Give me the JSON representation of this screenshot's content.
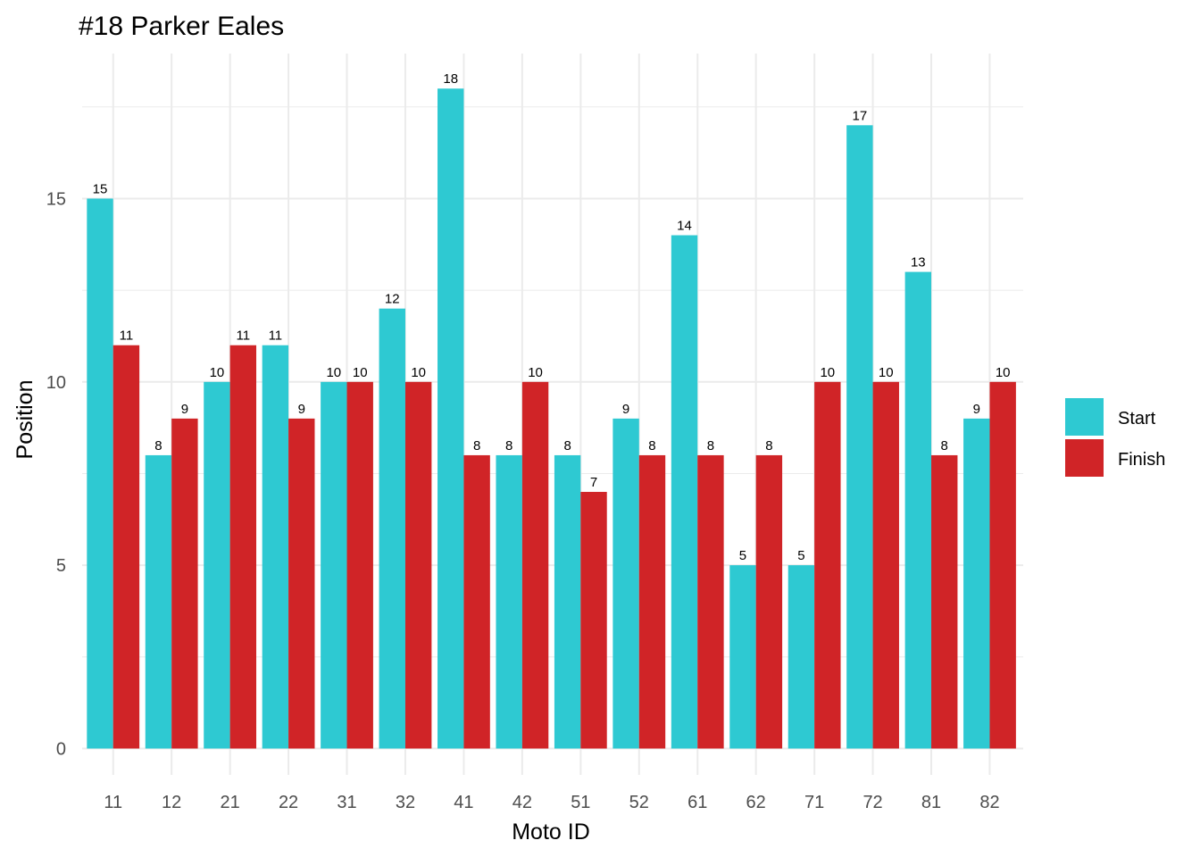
{
  "chart_data": {
    "type": "bar",
    "title": "#18 Parker Eales",
    "xlabel": "Moto ID",
    "ylabel": "Position",
    "categories": [
      "11",
      "12",
      "21",
      "22",
      "31",
      "32",
      "41",
      "42",
      "51",
      "52",
      "61",
      "62",
      "71",
      "72",
      "81",
      "82"
    ],
    "series": [
      {
        "name": "Start",
        "color": "#2ec9d2",
        "values": [
          15,
          8,
          10,
          11,
          10,
          12,
          18,
          8,
          8,
          9,
          14,
          5,
          5,
          17,
          13,
          9
        ]
      },
      {
        "name": "Finish",
        "color": "#d02427",
        "values": [
          11,
          9,
          11,
          9,
          10,
          10,
          8,
          10,
          7,
          8,
          8,
          8,
          10,
          10,
          8,
          10
        ]
      }
    ],
    "ylim": [
      0,
      19
    ],
    "yticks": [
      0,
      5,
      10,
      15
    ],
    "grid": true,
    "legend_position": "right",
    "data_labels": true
  }
}
